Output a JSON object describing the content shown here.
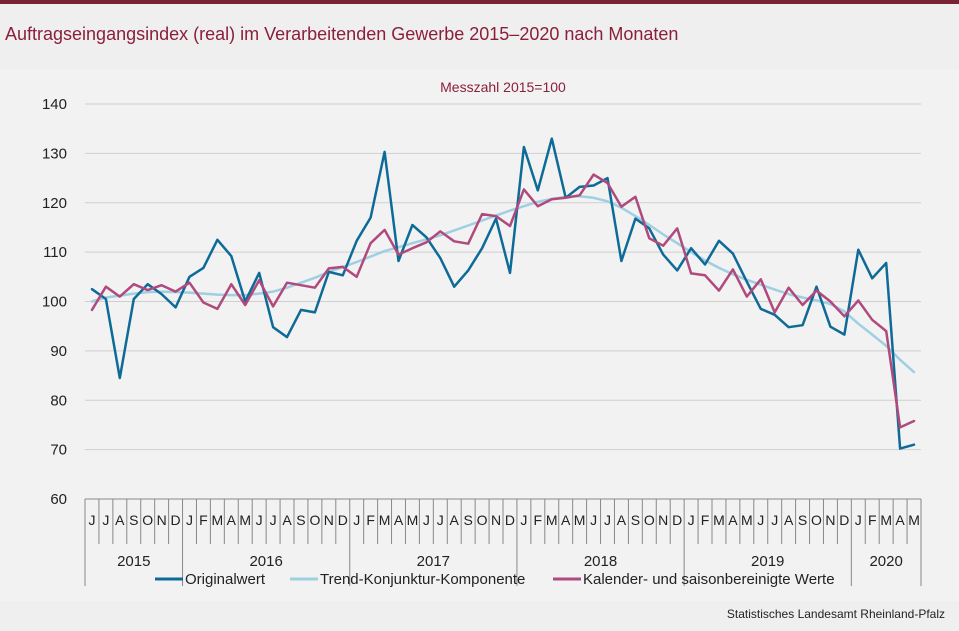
{
  "header": {
    "title": "Auftragseingangsindex (real) im Verarbeitenden Gewerbe 2015–2020 nach Monaten"
  },
  "source": "Statistisches Landesamt Rheinland-Pfalz",
  "colors": {
    "accent": "#7a2433",
    "title": "#8b1f3b",
    "original": "#0e6b97",
    "trend": "#9fcfe3",
    "seasonal": "#b04a7c"
  },
  "chart_data": {
    "type": "line",
    "subtitle": "Messzahl  2015=100",
    "ylim": [
      60,
      140
    ],
    "yticks": [
      60,
      70,
      80,
      90,
      100,
      110,
      120,
      130,
      140
    ],
    "grid": true,
    "legend_position": "bottom",
    "months": [
      "J",
      "J",
      "A",
      "S",
      "O",
      "N",
      "D",
      "J",
      "F",
      "M",
      "A",
      "M",
      "J",
      "J",
      "A",
      "S",
      "O",
      "N",
      "D",
      "J",
      "F",
      "M",
      "A",
      "M",
      "J",
      "J",
      "A",
      "S",
      "O",
      "N",
      "D",
      "J",
      "F",
      "M",
      "A",
      "M",
      "J",
      "J",
      "A",
      "S",
      "O",
      "N",
      "D",
      "J",
      "F",
      "M",
      "A",
      "M",
      "J",
      "J",
      "A",
      "S",
      "O",
      "N",
      "D",
      "J",
      "F",
      "M",
      "A",
      "M"
    ],
    "years": [
      {
        "label": "2015",
        "start": 0,
        "count": 7
      },
      {
        "label": "2016",
        "start": 7,
        "count": 12
      },
      {
        "label": "2017",
        "start": 19,
        "count": 12
      },
      {
        "label": "2018",
        "start": 31,
        "count": 12
      },
      {
        "label": "2019",
        "start": 43,
        "count": 12
      },
      {
        "label": "2020",
        "start": 55,
        "count": 5
      }
    ],
    "series": [
      {
        "name": "Originalwert",
        "color": "#0e6b97",
        "values": [
          102.5,
          100.5,
          84.5,
          100.5,
          103.5,
          101.5,
          98.8,
          105.0,
          106.8,
          112.5,
          109.2,
          100.0,
          105.8,
          94.8,
          92.8,
          98.3,
          97.8,
          106.0,
          105.3,
          112.3,
          117.0,
          130.3,
          108.2,
          115.5,
          113.0,
          108.8,
          103.0,
          106.3,
          110.8,
          116.8,
          105.8,
          131.3,
          122.5,
          133.0,
          121.0,
          123.2,
          123.5,
          125.0,
          108.2,
          116.8,
          114.8,
          109.5,
          106.3,
          110.8,
          107.5,
          112.3,
          109.7,
          104.0,
          98.5,
          97.3,
          94.8,
          95.2,
          103.0,
          94.9,
          93.3,
          110.5,
          104.7,
          107.8,
          70.2,
          71.0
        ]
      },
      {
        "name": "Trend-Konjunktur-Komponente",
        "color": "#9fcfe3",
        "values": [
          100.0,
          100.8,
          101.2,
          101.6,
          101.9,
          102.0,
          101.9,
          101.8,
          101.6,
          101.4,
          101.3,
          101.3,
          101.6,
          102.0,
          102.8,
          103.8,
          104.8,
          106.0,
          107.0,
          108.0,
          109.1,
          110.2,
          111.0,
          111.8,
          112.6,
          113.4,
          114.4,
          115.4,
          116.4,
          117.4,
          118.4,
          119.3,
          120.2,
          120.8,
          121.2,
          121.3,
          121.0,
          120.3,
          119.0,
          117.3,
          115.5,
          113.6,
          111.8,
          110.0,
          108.3,
          106.8,
          105.5,
          104.4,
          103.4,
          102.4,
          101.5,
          100.8,
          100.2,
          99.5,
          98.0,
          95.5,
          93.3,
          91.0,
          88.2,
          85.7
        ]
      },
      {
        "name": "Kalender- und saisonbereinigte Werte",
        "color": "#b04a7c",
        "values": [
          98.3,
          103.0,
          101.0,
          103.5,
          102.3,
          103.3,
          102.0,
          103.8,
          99.8,
          98.5,
          103.5,
          99.3,
          104.3,
          99.0,
          103.8,
          103.3,
          102.8,
          106.7,
          107.0,
          105.0,
          111.8,
          114.5,
          109.5,
          110.8,
          112.0,
          114.2,
          112.2,
          111.7,
          117.7,
          117.3,
          115.3,
          122.7,
          119.3,
          120.7,
          121.0,
          121.5,
          125.7,
          124.0,
          119.2,
          121.2,
          112.8,
          111.3,
          114.8,
          105.7,
          105.3,
          102.2,
          106.5,
          101.0,
          104.5,
          97.8,
          102.8,
          99.3,
          102.2,
          100.0,
          97.0,
          100.2,
          96.3,
          94.0,
          74.5,
          75.8
        ]
      }
    ]
  }
}
